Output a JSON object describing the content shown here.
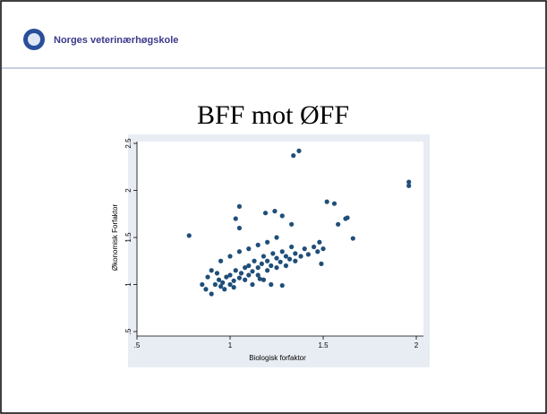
{
  "header": {
    "logo_text": "Norges veterinærhøgskole"
  },
  "slide": {
    "title": "BFF mot ØFF"
  },
  "chart_data": {
    "type": "scatter",
    "x_label": "Biologisk forfaktor",
    "y_label": "Økonomisk Forfaktor",
    "color": "#1f4e79",
    "xlim": [
      0.5,
      2
    ],
    "ylim": [
      0.5,
      2.5
    ],
    "xticks": [
      {
        "value": 0.5,
        "label": ".5"
      },
      1,
      1.5,
      2
    ],
    "yticks": [
      {
        "value": 0.5,
        "label": ".5"
      },
      1,
      1.5,
      2,
      2.5
    ],
    "x": [
      1.96,
      1.96,
      1.37,
      1.34,
      0.78,
      1.52,
      1.56,
      1.05,
      1.19,
      1.24,
      1.63,
      1.62,
      1.58,
      1.66,
      1.03,
      1.28,
      1.33,
      0.87,
      0.9,
      0.95,
      1.16,
      1.22,
      1.28,
      1.49,
      1.47,
      1.05,
      0.92,
      0.94,
      0.96,
      0.98,
      1.0,
      1.0,
      1.02,
      1.03,
      1.05,
      1.06,
      1.08,
      1.08,
      1.1,
      1.1,
      1.12,
      1.13,
      1.15,
      1.15,
      1.17,
      1.18,
      1.2,
      1.2,
      1.22,
      1.23,
      1.25,
      1.25,
      1.27,
      1.28,
      1.3,
      1.3,
      1.32,
      1.33,
      1.35,
      1.35,
      1.38,
      1.4,
      1.42,
      1.45,
      1.48,
      1.5,
      0.9,
      0.95,
      1.0,
      1.05,
      1.1,
      0.88,
      0.85,
      1.15,
      1.2,
      1.25,
      1.12,
      1.18,
      1.02,
      0.97,
      0.93
    ],
    "values": [
      2.09,
      2.05,
      2.42,
      2.37,
      1.52,
      1.88,
      1.86,
      1.83,
      1.76,
      1.78,
      1.71,
      1.7,
      1.64,
      1.49,
      1.7,
      1.73,
      1.64,
      0.95,
      0.9,
      0.98,
      1.06,
      1.0,
      0.99,
      1.22,
      1.35,
      1.6,
      1.0,
      1.05,
      1.02,
      1.08,
      1.0,
      1.1,
      1.04,
      1.15,
      1.07,
      1.12,
      1.05,
      1.18,
      1.1,
      1.2,
      1.14,
      1.25,
      1.1,
      1.18,
      1.22,
      1.3,
      1.15,
      1.25,
      1.2,
      1.33,
      1.18,
      1.28,
      1.24,
      1.35,
      1.2,
      1.3,
      1.27,
      1.4,
      1.25,
      1.33,
      1.3,
      1.38,
      1.32,
      1.4,
      1.45,
      1.38,
      1.15,
      1.25,
      1.3,
      1.35,
      1.38,
      1.08,
      1.0,
      1.42,
      1.45,
      1.5,
      1.0,
      1.05,
      0.97,
      0.95,
      1.12
    ]
  }
}
